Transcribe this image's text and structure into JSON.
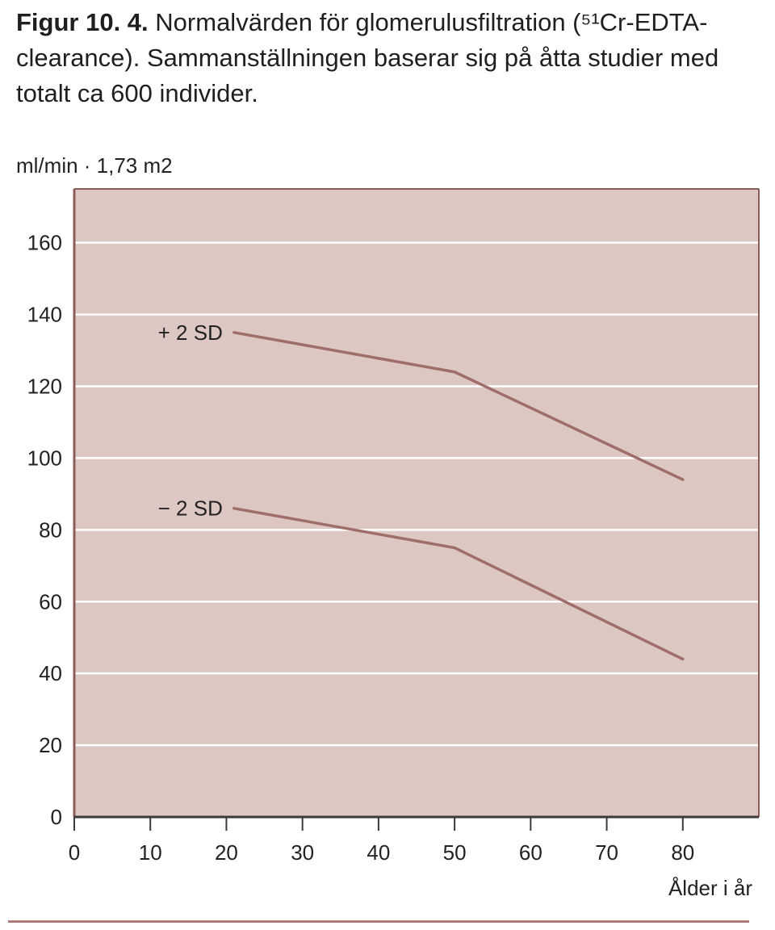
{
  "caption": {
    "lead": "Figur 10. 4.",
    "text": "Normalvärden för glomerulusfiltration (⁵¹Cr-EDTA-clearance). Sammanställningen baserar sig på åtta studier med totalt ca 600 individer."
  },
  "colors": {
    "plot_background": "#dcc7c3",
    "line": "#a06e6a",
    "gridline": "#ffffff",
    "frame": "#8b5d59",
    "rule": "#b07a76"
  },
  "chart_data": {
    "type": "line",
    "title": "",
    "ylabel": "ml/min · 1,73 m2",
    "xlabel": "Ålder i år",
    "xlim": [
      0,
      90
    ],
    "ylim": [
      0,
      175
    ],
    "grid": true,
    "xticks": [
      0,
      10,
      20,
      30,
      40,
      50,
      60,
      70,
      80
    ],
    "yticks": [
      0,
      20,
      40,
      60,
      80,
      100,
      120,
      140,
      160
    ],
    "series": [
      {
        "name": "+ 2 SD",
        "x": [
          21,
          50,
          80
        ],
        "y": [
          135,
          124,
          94
        ]
      },
      {
        "name": "− 2 SD",
        "x": [
          21,
          50,
          80
        ],
        "y": [
          86,
          75,
          44
        ]
      }
    ]
  }
}
